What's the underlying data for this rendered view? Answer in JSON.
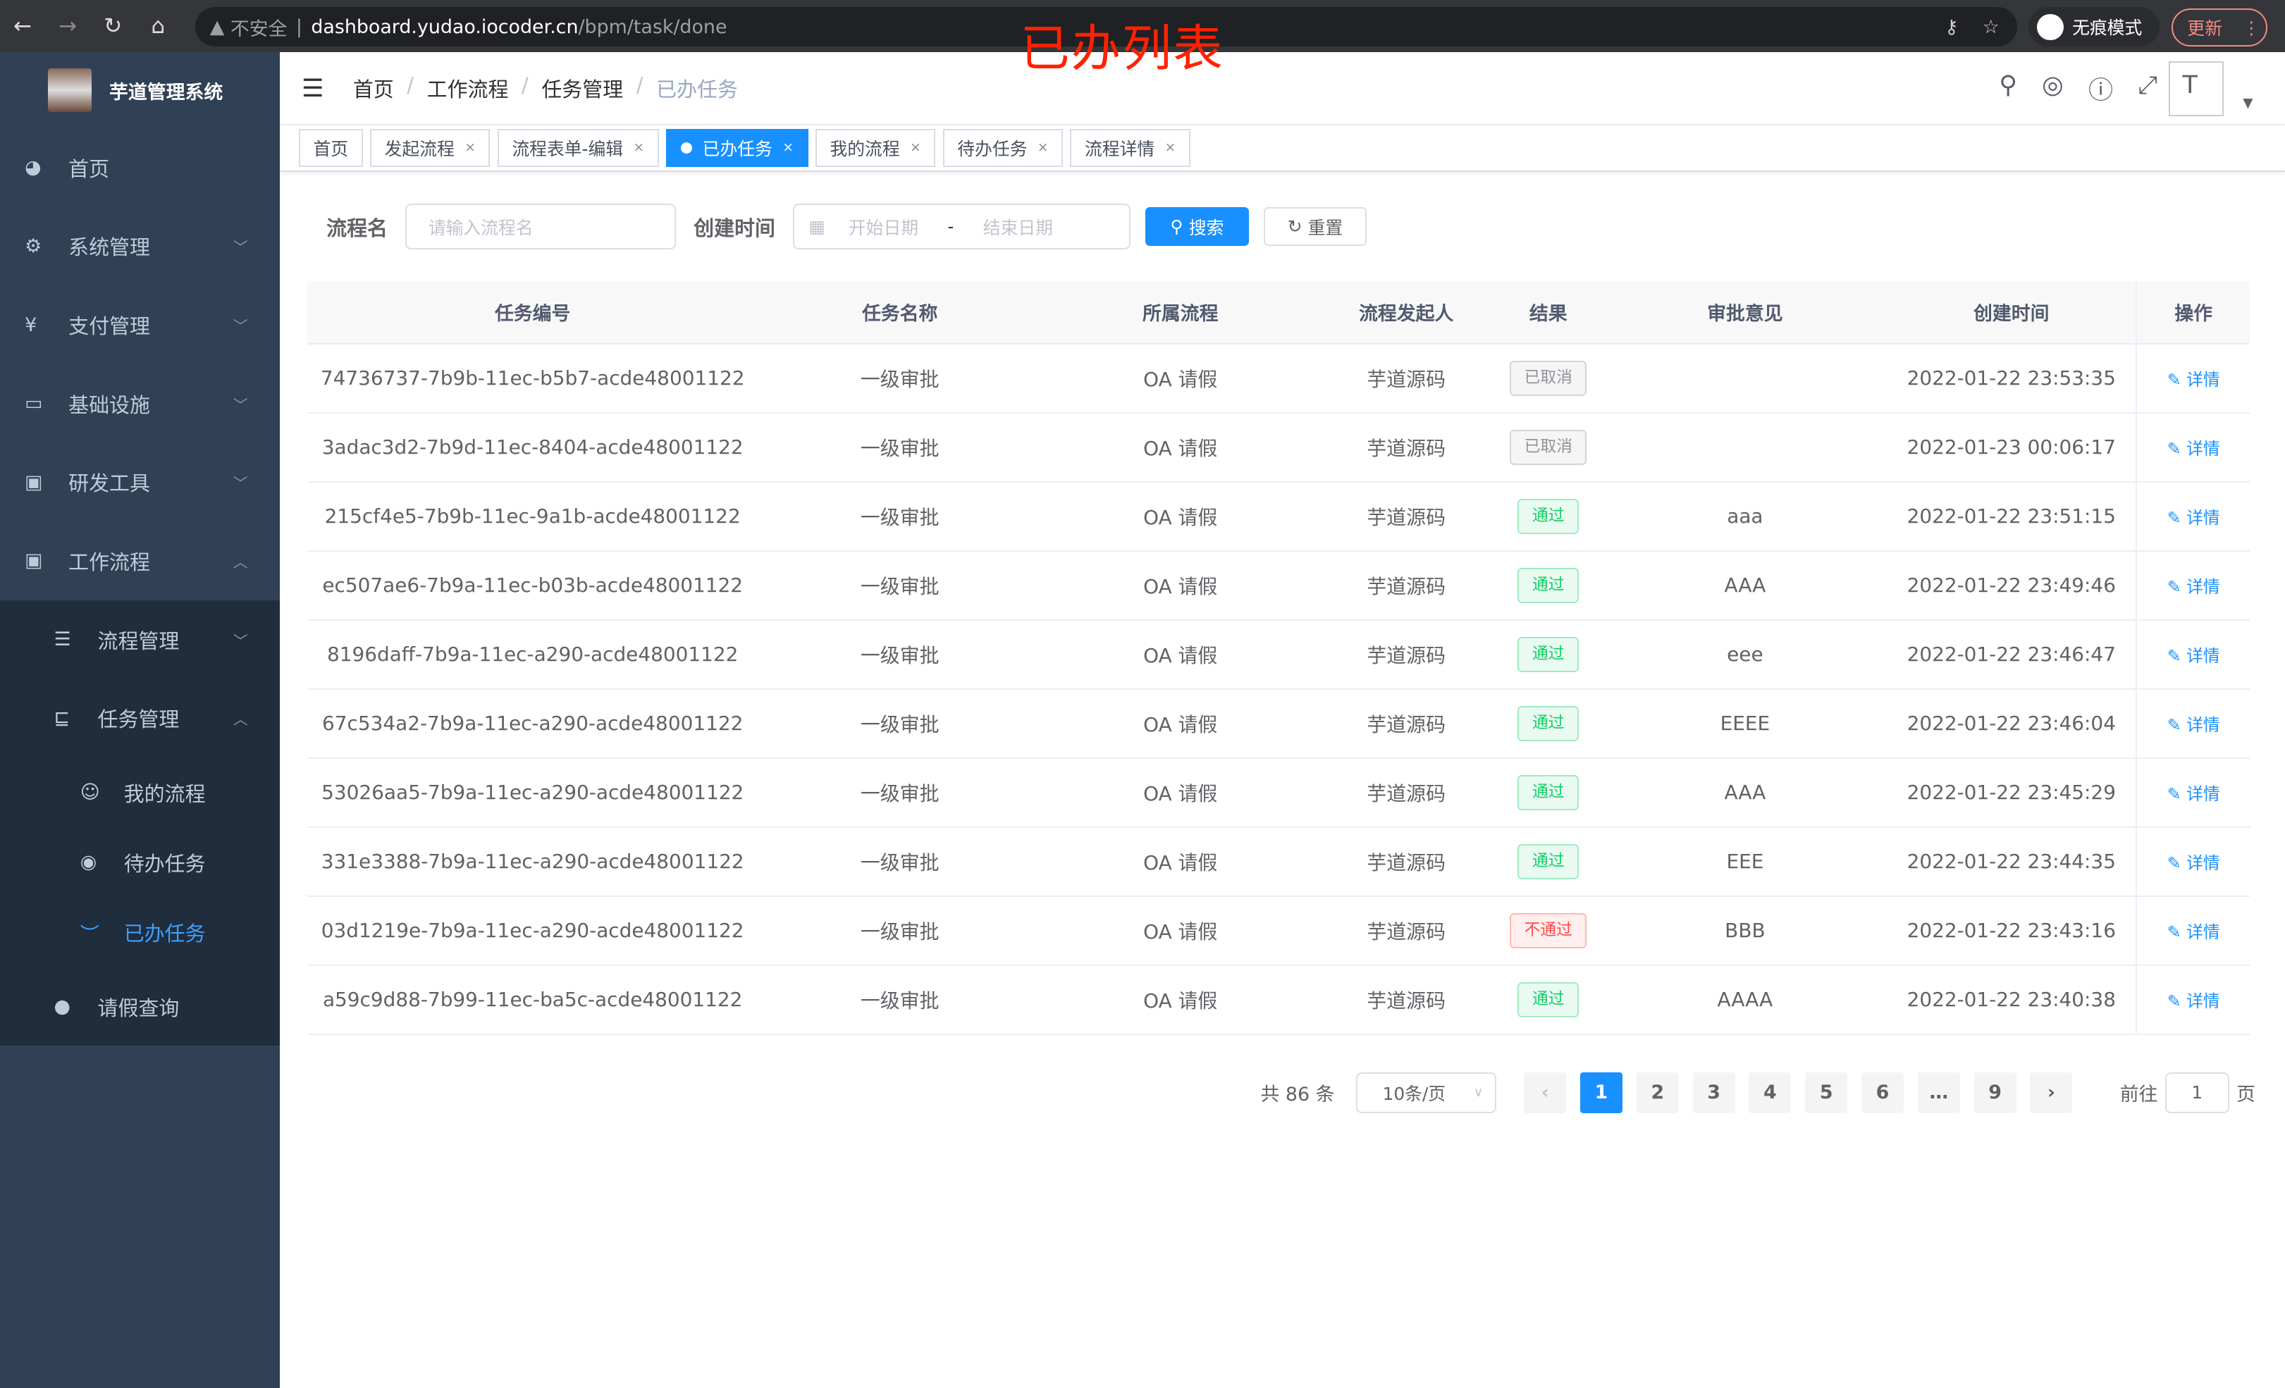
{
  "browser": {
    "url_host": "dashboard.yudao.iocoder.cn",
    "url_path": "/bpm/task/done",
    "insecure": "不安全",
    "incognito": "无痕模式",
    "update": "更新"
  },
  "annotation": "已办列表",
  "app": {
    "title": "芋道管理系统"
  },
  "sidebar": {
    "items": [
      {
        "label": "首页",
        "icon": "dashboard-icon"
      },
      {
        "label": "系统管理",
        "icon": "gear-icon"
      },
      {
        "label": "支付管理",
        "icon": "yen-icon"
      },
      {
        "label": "基础设施",
        "icon": "monitor-icon"
      },
      {
        "label": "研发工具",
        "icon": "toolbox-icon"
      },
      {
        "label": "工作流程",
        "icon": "toolbox-icon"
      }
    ],
    "sub": [
      {
        "label": "流程管理"
      },
      {
        "label": "任务管理"
      }
    ],
    "sub2": [
      {
        "label": "我的流程"
      },
      {
        "label": "待办任务"
      },
      {
        "label": "已办任务"
      }
    ],
    "leave": "请假查询"
  },
  "breadcrumb": [
    "首页",
    "工作流程",
    "任务管理",
    "已办任务"
  ],
  "tabs": [
    {
      "label": "首页"
    },
    {
      "label": "发起流程"
    },
    {
      "label": "流程表单-编辑"
    },
    {
      "label": "已办任务",
      "active": true
    },
    {
      "label": "我的流程"
    },
    {
      "label": "待办任务"
    },
    {
      "label": "流程详情"
    }
  ],
  "search": {
    "name_label": "流程名",
    "name_placeholder": "请输入流程名",
    "time_label": "创建时间",
    "start_placeholder": "开始日期",
    "sep": "-",
    "end_placeholder": "结束日期",
    "search": "搜索",
    "reset": "重置"
  },
  "table": {
    "headers": [
      "任务编号",
      "任务名称",
      "所属流程",
      "流程发起人",
      "结果",
      "审批意见",
      "创建时间",
      "操作"
    ],
    "rows": [
      [
        "74736737-7b9b-11ec-b5b7-acde48001122",
        "一级审批",
        "OA 请假",
        "芋道源码",
        "已取消",
        "",
        "2022-01-22 23:53:35",
        "详情"
      ],
      [
        "3adac3d2-7b9d-11ec-8404-acde48001122",
        "一级审批",
        "OA 请假",
        "芋道源码",
        "已取消",
        "",
        "2022-01-23 00:06:17",
        "详情"
      ],
      [
        "215cf4e5-7b9b-11ec-9a1b-acde48001122",
        "一级审批",
        "OA 请假",
        "芋道源码",
        "通过",
        "aaa",
        "2022-01-22 23:51:15",
        "详情"
      ],
      [
        "ec507ae6-7b9a-11ec-b03b-acde48001122",
        "一级审批",
        "OA 请假",
        "芋道源码",
        "通过",
        "AAA",
        "2022-01-22 23:49:46",
        "详情"
      ],
      [
        "8196daff-7b9a-11ec-a290-acde48001122",
        "一级审批",
        "OA 请假",
        "芋道源码",
        "通过",
        "eee",
        "2022-01-22 23:46:47",
        "详情"
      ],
      [
        "67c534a2-7b9a-11ec-a290-acde48001122",
        "一级审批",
        "OA 请假",
        "芋道源码",
        "通过",
        "EEEE",
        "2022-01-22 23:46:04",
        "详情"
      ],
      [
        "53026aa5-7b9a-11ec-a290-acde48001122",
        "一级审批",
        "OA 请假",
        "芋道源码",
        "通过",
        "AAA",
        "2022-01-22 23:45:29",
        "详情"
      ],
      [
        "331e3388-7b9a-11ec-a290-acde48001122",
        "一级审批",
        "OA 请假",
        "芋道源码",
        "通过",
        "EEE",
        "2022-01-22 23:44:35",
        "详情"
      ],
      [
        "03d1219e-7b9a-11ec-a290-acde48001122",
        "一级审批",
        "OA 请假",
        "芋道源码",
        "不通过",
        "BBB",
        "2022-01-22 23:43:16",
        "详情"
      ],
      [
        "a59c9d88-7b99-11ec-ba5c-acde48001122",
        "一级审批",
        "OA 请假",
        "芋道源码",
        "通过",
        "AAAA",
        "2022-01-22 23:40:38",
        "详情"
      ]
    ]
  },
  "status_colors": {
    "已取消": "#909399",
    "通过": "#13ce66",
    "不通过": "#ff4949"
  },
  "pagination": {
    "total": "共 86 条",
    "page_size": "10条/页",
    "pages": [
      "1",
      "2",
      "3",
      "4",
      "5",
      "6",
      "…",
      "9"
    ],
    "current": "1",
    "goto_label": "前往",
    "goto_value": "1",
    "page_unit": "页"
  }
}
